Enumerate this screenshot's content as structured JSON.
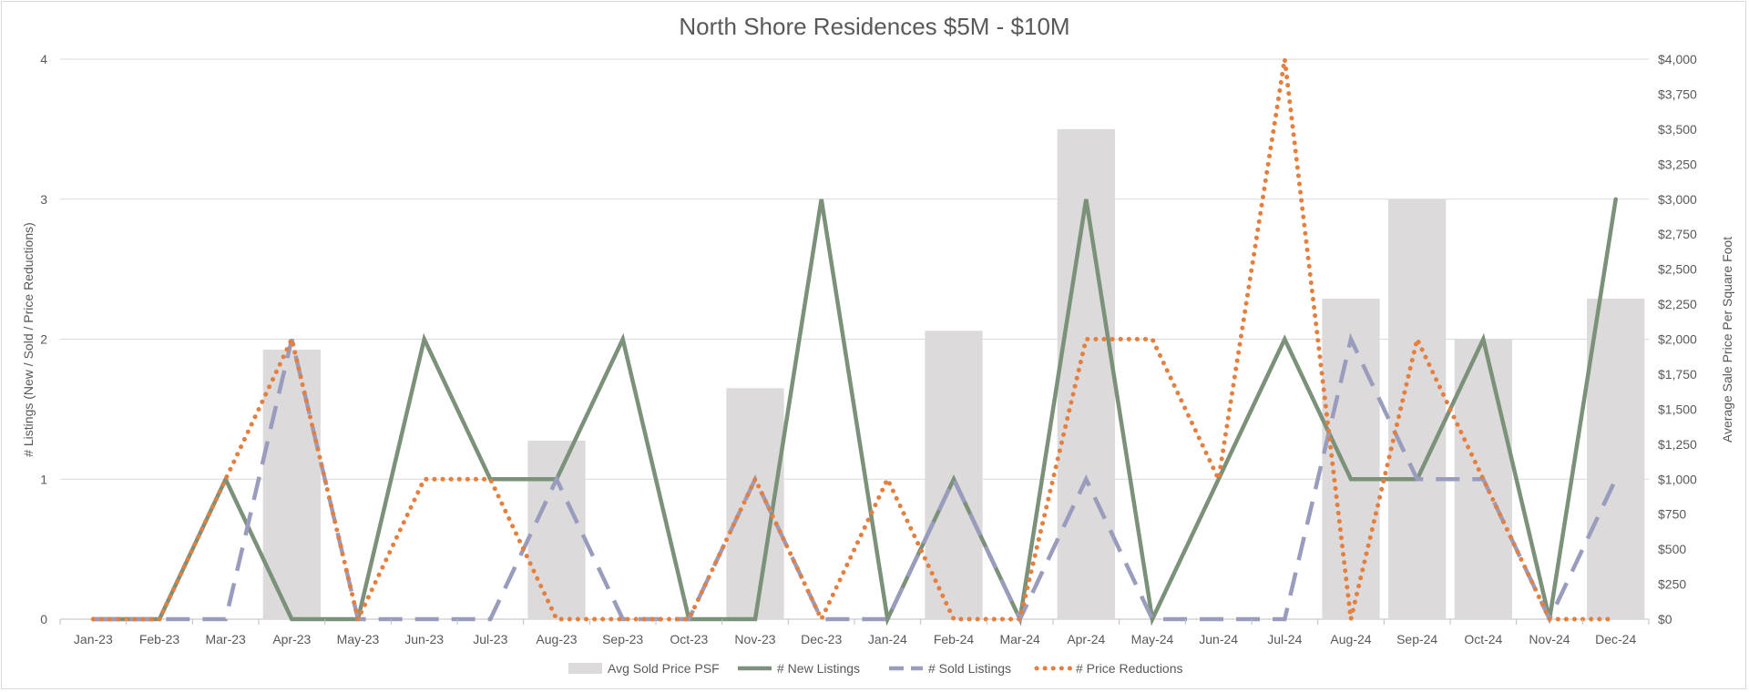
{
  "chart_data": {
    "type": "bar+line",
    "title": "North Shore Residences $5M - $10M",
    "categories": [
      "Jan-23",
      "Feb-23",
      "Mar-23",
      "Apr-23",
      "May-23",
      "Jun-23",
      "Jul-23",
      "Aug-23",
      "Sep-23",
      "Oct-23",
      "Nov-23",
      "Dec-23",
      "Jan-24",
      "Feb-24",
      "Mar-24",
      "Apr-24",
      "May-24",
      "Jun-24",
      "Jul-24",
      "Aug-24",
      "Sep-24",
      "Oct-24",
      "Nov-24",
      "Dec-24"
    ],
    "y_left": {
      "label": "# Listings (New / Sold / Price Reductions)",
      "range": [
        0,
        4
      ],
      "ticks": [
        0,
        1,
        2,
        3,
        4
      ],
      "tick_labels": [
        "0",
        "1",
        "2",
        "3",
        "4"
      ]
    },
    "y_right": {
      "label": "Average Sale Price Per Square Foot",
      "range": [
        0,
        4000
      ],
      "ticks": [
        0,
        250,
        500,
        750,
        1000,
        1250,
        1500,
        1750,
        2000,
        2250,
        2500,
        2750,
        3000,
        3250,
        3500,
        3750,
        4000
      ],
      "tick_labels": [
        "$0",
        "$250",
        "$500",
        "$750",
        "$1,000",
        "$1,250",
        "$1,500",
        "$1,750",
        "$2,000",
        "$2,250",
        "$2,500",
        "$2,750",
        "$3,000",
        "$3,250",
        "$3,500",
        "$3,750",
        "$4,000"
      ]
    },
    "grid": true,
    "legend_position": "bottom",
    "series": [
      {
        "name": "Avg Sold Price PSF",
        "type": "bar",
        "axis": "right",
        "color": "#dcdadb",
        "values": [
          0,
          0,
          0,
          1925,
          0,
          0,
          0,
          1275,
          0,
          0,
          1650,
          0,
          0,
          2060,
          0,
          3500,
          0,
          0,
          0,
          2290,
          3000,
          2000,
          0,
          2290
        ]
      },
      {
        "name": "# New Listings",
        "type": "line",
        "style": "solid",
        "axis": "left",
        "color": "#7b917a",
        "values": [
          0,
          0,
          1,
          0,
          0,
          2,
          1,
          1,
          2,
          0,
          0,
          3,
          0,
          1,
          0,
          3,
          0,
          1,
          2,
          1,
          1,
          2,
          0,
          3
        ]
      },
      {
        "name": "# Sold Listings",
        "type": "line",
        "style": "dashed",
        "axis": "left",
        "color": "#9a9cbd",
        "values": [
          0,
          0,
          0,
          2,
          0,
          0,
          0,
          1,
          0,
          0,
          1,
          0,
          0,
          1,
          0,
          1,
          0,
          0,
          0,
          2,
          1,
          1,
          0,
          1
        ]
      },
      {
        "name": "# Price Reductions",
        "type": "line",
        "style": "dotted",
        "axis": "left",
        "color": "#e57f3d",
        "values": [
          0,
          0,
          1,
          2,
          0,
          1,
          1,
          0,
          0,
          0,
          1,
          0,
          1,
          0,
          0,
          2,
          2,
          1,
          4,
          0,
          2,
          1,
          0,
          0
        ]
      }
    ]
  }
}
